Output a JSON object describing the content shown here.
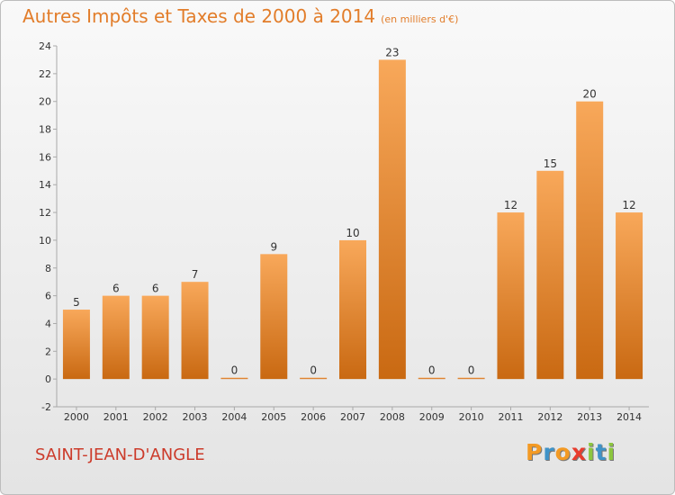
{
  "title": "Autres Impôts et Taxes de 2000 à 2014",
  "unit": "(en milliers d'€)",
  "city": "SAINT-JEAN-D'ANGLE",
  "logo": {
    "text": "Proxiti",
    "letter_colors": [
      "#f39a24",
      "#3f93c8",
      "#f39a24",
      "#e83c2e",
      "#8cc63e",
      "#3f93c8",
      "#8cc63e"
    ]
  },
  "colors": {
    "bar_top": "#f8a85a",
    "bar_bottom": "#c96912",
    "axis": "#a9a9a9",
    "text": "#333333"
  },
  "chart_data": {
    "type": "bar",
    "title": "Autres Impôts et Taxes de 2000 à 2014",
    "xlabel": "",
    "ylabel": "",
    "categories": [
      "2000",
      "2001",
      "2002",
      "2003",
      "2004",
      "2005",
      "2006",
      "2007",
      "2008",
      "2009",
      "2010",
      "2011",
      "2012",
      "2013",
      "2014"
    ],
    "values": [
      5,
      6,
      6,
      7,
      0,
      9,
      0,
      10,
      23,
      0,
      0,
      12,
      15,
      20,
      12
    ],
    "data_labels": [
      "5",
      "6",
      "6",
      "7",
      "0",
      "9",
      "0",
      "10",
      "23",
      "0",
      "0",
      "12",
      "15",
      "20",
      "12"
    ],
    "ylim": [
      -2,
      24
    ],
    "yticks": [
      -2,
      0,
      2,
      4,
      6,
      8,
      10,
      12,
      14,
      16,
      18,
      20,
      22,
      24
    ],
    "grid": false,
    "legend": "none"
  }
}
